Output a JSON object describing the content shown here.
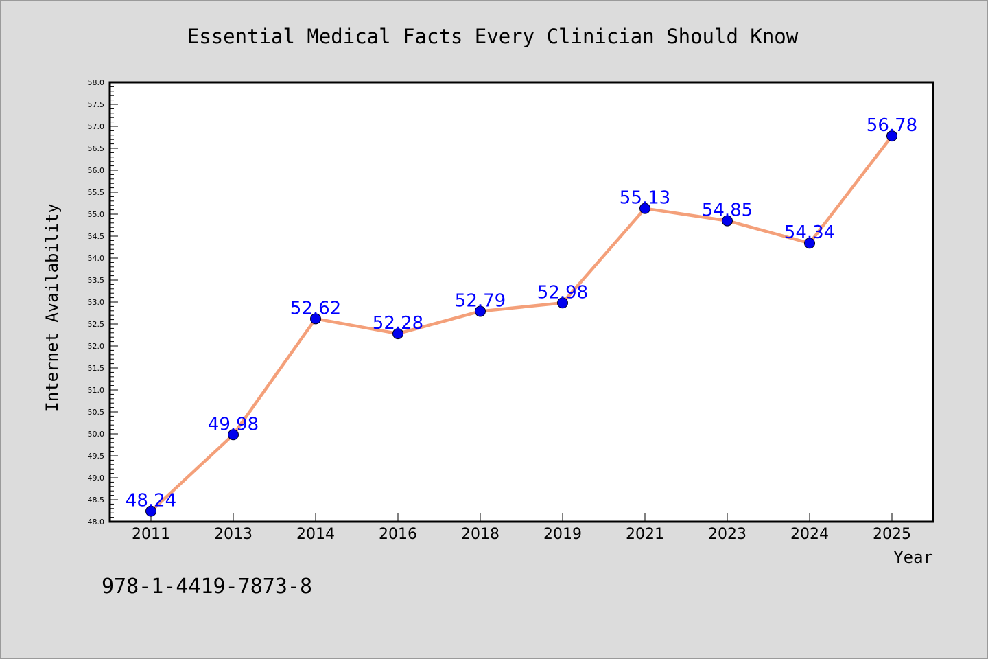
{
  "chart_data": {
    "type": "line",
    "title": "Essential Medical Facts Every Clinician Should Know",
    "xlabel": "Year",
    "ylabel": "Internet Availability",
    "categories": [
      "2011",
      "2013",
      "2014",
      "2016",
      "2018",
      "2019",
      "2021",
      "2023",
      "2024",
      "2025"
    ],
    "series": [
      {
        "values": [
          48.24,
          49.98,
          52.62,
          52.28,
          52.79,
          52.98,
          55.13,
          54.85,
          54.34,
          56.78
        ],
        "data_labels": [
          "48.24",
          "49.98",
          "52.62",
          "52.28",
          "52.79",
          "52.98",
          "55.13",
          "54.85",
          "54.34",
          "56.78"
        ],
        "line_color": "#f4a07a",
        "marker_color": "#0000ee",
        "label_color": "#0000ff"
      }
    ],
    "ylim": [
      48.0,
      58.0
    ],
    "yticks": [
      "48.0",
      "48.5",
      "49.0",
      "49.5",
      "50.0",
      "50.5",
      "51.0",
      "51.5",
      "52.0",
      "52.5",
      "53.0",
      "53.5",
      "54.0",
      "54.5",
      "55.0",
      "55.5",
      "56.0",
      "56.5",
      "57.0",
      "57.5",
      "58.0"
    ],
    "grid": false,
    "legend": "none"
  },
  "footer": {
    "isbn": "978-1-4419-7873-8"
  },
  "colors": {
    "page_background": "#dcdcdc",
    "plot_background": "#ffffff",
    "axis_frame": "#000000",
    "text": "#000000"
  }
}
